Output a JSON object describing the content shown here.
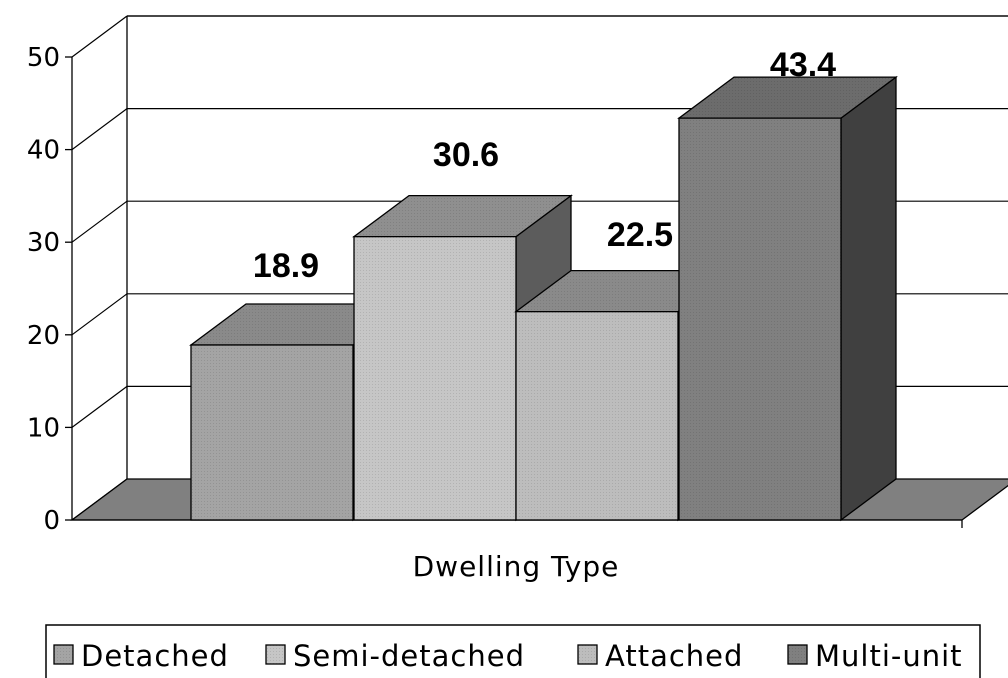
{
  "chart_data": {
    "type": "bar",
    "categories": [
      "Detached",
      "Semi-detached",
      "Attached",
      "Multi-unit"
    ],
    "values": [
      18.9,
      30.6,
      22.5,
      43.4
    ],
    "data_labels": [
      "18.9",
      "30.6",
      "22.5",
      "43.4"
    ],
    "title": "",
    "xlabel": "Dwelling Type",
    "ylabel": "",
    "ylim": [
      0,
      50
    ],
    "yticks": [
      "0",
      "10",
      "20",
      "30",
      "40",
      "50"
    ],
    "style": "3d-clustered",
    "grid": true,
    "legend": {
      "position": "bottom",
      "entries": [
        {
          "label": "Detached",
          "color": "#a4a4a4"
        },
        {
          "label": "Semi-detached",
          "color": "#c6c6c6"
        },
        {
          "label": "Attached",
          "color": "#bdbdbd"
        },
        {
          "label": "Multi-unit",
          "color": "#808080"
        }
      ]
    },
    "colors": {
      "floor": "#808080",
      "bar_fronts": [
        "#a4a4a4",
        "#c6c6c6",
        "#bdbdbd",
        "#808080"
      ],
      "bar_tops": [
        "#8a8a8a",
        "#8f8f8f",
        "#8a8a8a",
        "#6c6c6c"
      ],
      "bar_sides": [
        "#5c5c5c",
        "#5c5c5c",
        "#5c5c5c",
        "#404040"
      ]
    }
  }
}
